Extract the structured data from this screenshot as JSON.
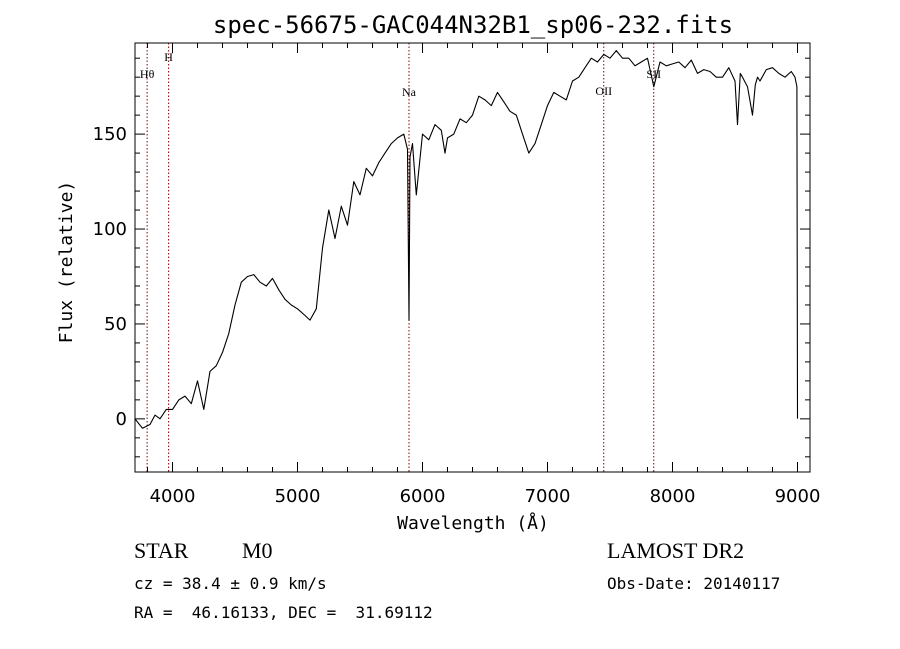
{
  "chart_data": {
    "type": "line",
    "title": "spec-56675-GAC044N32B1_sp06-232.fits",
    "xlabel": "Wavelength (Å)",
    "ylabel": "Flux (relative)",
    "xlim": [
      3700,
      9100
    ],
    "ylim": [
      -28,
      198
    ],
    "xticks": [
      4000,
      5000,
      6000,
      7000,
      8000,
      9000
    ],
    "yticks": [
      0,
      50,
      100,
      150
    ],
    "series": [
      {
        "x": [
          3700,
          3760,
          3820,
          3860,
          3900,
          3950,
          4000,
          4050,
          4100,
          4150,
          4200,
          4250,
          4300,
          4350,
          4400,
          4450,
          4500,
          4550,
          4600,
          4650,
          4700,
          4750,
          4800,
          4850,
          4900,
          4950,
          5000,
          5050,
          5100,
          5150,
          5200,
          5250,
          5300,
          5350,
          5400,
          5450,
          5500,
          5550,
          5600,
          5650,
          5700,
          5750,
          5800,
          5850,
          5880,
          5892,
          5900,
          5920,
          5950,
          6000,
          6050,
          6100,
          6150,
          6180,
          6200,
          6250,
          6300,
          6350,
          6400,
          6450,
          6500,
          6550,
          6600,
          6650,
          6700,
          6750,
          6800,
          6850,
          6900,
          6950,
          7000,
          7050,
          7100,
          7150,
          7200,
          7250,
          7300,
          7350,
          7400,
          7450,
          7500,
          7550,
          7600,
          7650,
          7700,
          7750,
          7800,
          7850,
          7900,
          7950,
          8000,
          8050,
          8100,
          8150,
          8200,
          8250,
          8300,
          8350,
          8400,
          8450,
          8500,
          8520,
          8542,
          8560,
          8600,
          8640,
          8662,
          8680,
          8700,
          8750,
          8800,
          8850,
          8900,
          8950,
          8980,
          8995,
          9000
        ],
        "y": [
          0,
          -5,
          -3,
          2,
          0,
          5,
          5,
          10,
          12,
          8,
          20,
          5,
          25,
          28,
          35,
          45,
          60,
          72,
          75,
          76,
          72,
          70,
          74,
          68,
          63,
          60,
          58,
          55,
          52,
          58,
          90,
          110,
          95,
          112,
          102,
          125,
          118,
          132,
          128,
          135,
          140,
          145,
          148,
          150,
          142,
          52,
          138,
          145,
          118,
          150,
          147,
          155,
          152,
          140,
          148,
          150,
          158,
          156,
          160,
          170,
          168,
          165,
          172,
          167,
          162,
          160,
          150,
          140,
          145,
          155,
          165,
          172,
          170,
          168,
          178,
          180,
          185,
          190,
          188,
          192,
          190,
          194,
          190,
          190,
          186,
          188,
          190,
          175,
          188,
          186,
          187,
          188,
          185,
          189,
          182,
          184,
          183,
          180,
          180,
          185,
          178,
          155,
          182,
          180,
          175,
          160,
          176,
          180,
          178,
          184,
          185,
          182,
          180,
          183,
          180,
          175,
          0
        ],
        "color": "#000000"
      }
    ],
    "lines": [
      {
        "x": 3797,
        "label": "Hθ"
      },
      {
        "x": 3969,
        "label": "H"
      },
      {
        "x": 5892,
        "label": "Na"
      },
      {
        "x": 7450,
        "label": "OII"
      },
      {
        "x": 7850,
        "label": "SII"
      }
    ],
    "line_color": "#8b0000",
    "grid": false
  },
  "info": {
    "object_type": "STAR",
    "subclass": "M0",
    "survey": "LAMOST DR2",
    "cz": "cz = 38.4 ± 0.9 km/s",
    "obs_date": "Obs-Date: 20140117",
    "coords": "RA =  46.16133, DEC =  31.69112"
  }
}
